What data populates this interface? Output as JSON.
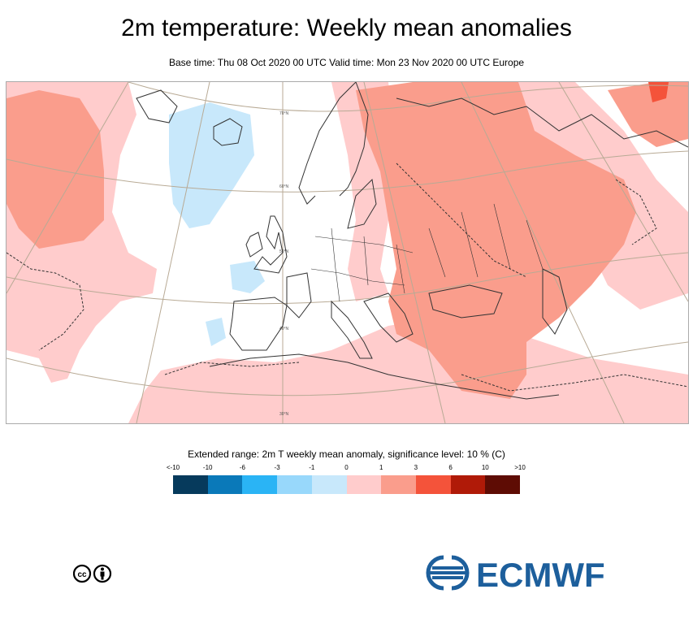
{
  "header": {
    "title": "2m temperature: Weekly mean anomalies",
    "subtitle": "Base time: Thu 08 Oct 2020 00 UTC Valid time: Mon 23 Nov 2020 00 UTC Europe"
  },
  "map": {
    "region": "Europe",
    "grid_labels": [
      "70°N",
      "60°N",
      "50°N",
      "40°N",
      "30°N"
    ],
    "colors": {
      "land_anomaly_1_3": "#ffcccc",
      "land_anomaly_3_6": "#fa9d8c",
      "land_anomaly_6_10": "#f4533a",
      "cold_anomaly_-1_0": "#c8e8fb",
      "borders": "#333333",
      "graticule": "#b8aa95"
    }
  },
  "legend": {
    "title": "Extended range: 2m T weekly mean anomaly, significance level: 10 % (C)",
    "labels": [
      "<-10",
      "-10",
      "-6",
      "-3",
      "-1",
      "0",
      "1",
      "3",
      "6",
      "10",
      ">10"
    ],
    "colors": [
      "#063a5c",
      "#0a79b9",
      "#2ab4f5",
      "#98d8fb",
      "#c8e8fb",
      "#ffcccc",
      "#fa9d8c",
      "#f4533a",
      "#b01a08",
      "#5e0c04"
    ]
  },
  "footer": {
    "logo_text": "ECMWF",
    "license_icon": "cc-by-icon",
    "brand_color": "#1d5f9c"
  }
}
